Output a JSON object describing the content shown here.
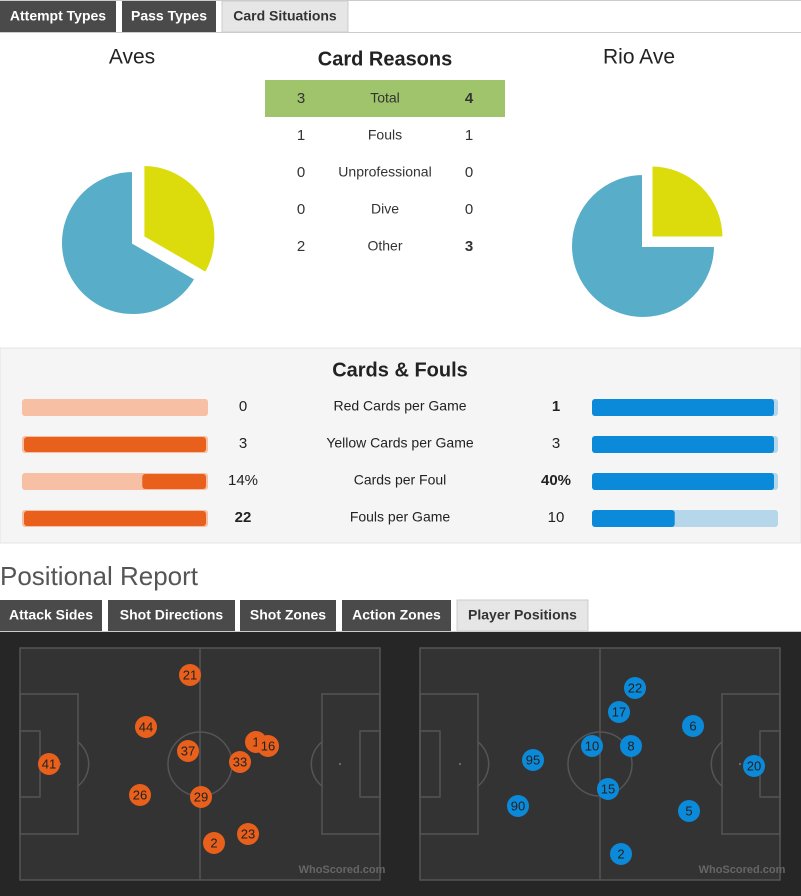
{
  "top_tabs": [
    "Attempt Types",
    "Pass Types",
    "Card Situations"
  ],
  "active_top_tab": 2,
  "card_reasons": {
    "title": "Card Reasons",
    "home_team": "Aves",
    "away_team": "Rio Ave",
    "rows": [
      {
        "label": "Total",
        "home": 3,
        "away": 4
      },
      {
        "label": "Fouls",
        "home": 1,
        "away": 1,
        "color": "#dcdc0c"
      },
      {
        "label": "Unprofessional",
        "home": 0,
        "away": 0
      },
      {
        "label": "Dive",
        "home": 0,
        "away": 0
      },
      {
        "label": "Other",
        "home": 2,
        "away": 3,
        "color": "#58aec8"
      }
    ]
  },
  "cards_fouls": {
    "title": "Cards & Fouls",
    "home_color": "#e8601c",
    "home_track": "#f7bfa3",
    "away_color": "#0b8ad9",
    "away_track": "#b6d7e9",
    "rows": [
      {
        "label": "Red Cards per Game",
        "home": 0,
        "away": 1
      },
      {
        "label": "Yellow Cards per Game",
        "home": 3,
        "away": 3
      },
      {
        "label": "Cards per Foul",
        "home": 14,
        "home_label": "14%",
        "away": 40,
        "away_label": "40%"
      },
      {
        "label": "Fouls per Game",
        "home": 22,
        "away": 10
      }
    ]
  },
  "positional_report": {
    "title": "Positional Report",
    "tabs": [
      "Attack Sides",
      "Shot Directions",
      "Shot Zones",
      "Action Zones",
      "Player Positions"
    ],
    "active_tab": 4,
    "home_players": [
      "21",
      "44",
      "37",
      "1",
      "16",
      "33",
      "41",
      "26",
      "29",
      "2",
      "23"
    ],
    "away_players": [
      "22",
      "17",
      "6",
      "10",
      "8",
      "95",
      "20",
      "15",
      "90",
      "5",
      "2"
    ],
    "watermark": "WhoScored.com"
  }
}
